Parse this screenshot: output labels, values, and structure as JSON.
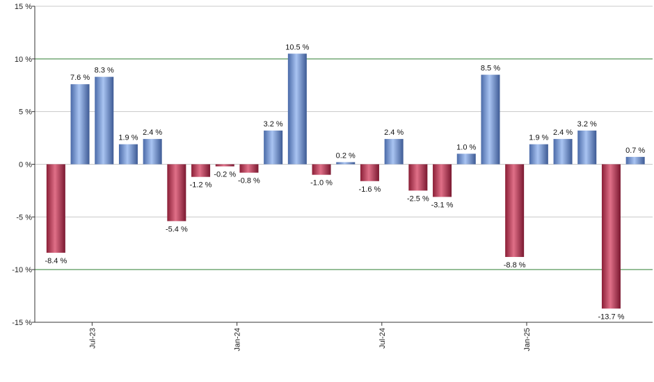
{
  "chart_data": {
    "type": "bar",
    "title": "",
    "xlabel": "",
    "ylabel": "",
    "ylim": [
      -15,
      15
    ],
    "y_ticks": [
      -15,
      -10,
      -5,
      0,
      5,
      10,
      15
    ],
    "y_tick_labels": [
      "-15 %",
      "-10 %",
      "-5 %",
      "0 %",
      "5 %",
      "10 %",
      "15 %"
    ],
    "highlight_lines": [
      10,
      -10
    ],
    "grid": true,
    "x_tick_labels": [
      {
        "label": "Jul-23",
        "index": 1.5
      },
      {
        "label": "Jan-24",
        "index": 7.5
      },
      {
        "label": "Jul-24",
        "index": 13.5
      },
      {
        "label": "Jan-25",
        "index": 19.5
      }
    ],
    "values": [
      -8.4,
      7.6,
      8.3,
      1.9,
      2.4,
      -5.4,
      -1.2,
      -0.2,
      -0.8,
      3.2,
      10.5,
      -1.0,
      0.2,
      -1.6,
      2.4,
      -2.5,
      -3.1,
      1.0,
      8.5,
      -8.8,
      1.9,
      2.4,
      3.2,
      -13.7,
      0.7
    ],
    "data_labels": [
      "-8.4 %",
      "7.6 %",
      "8.3 %",
      "1.9 %",
      "2.4 %",
      "-5.4 %",
      "-1.2 %",
      "-0.2 %",
      "-0.8 %",
      "3.2 %",
      "10.5 %",
      "-1.0 %",
      "0.2 %",
      "-1.6 %",
      "2.4 %",
      "-2.5 %",
      "-3.1 %",
      "1.0 %",
      "8.5 %",
      "-8.8 %",
      "1.9 %",
      "2.4 %",
      "3.2 %",
      "-13.7 %",
      "0.7 %"
    ],
    "colors": {
      "positive": "#7b9fe0",
      "positive_dark": "#3f5f9e",
      "negative": "#c8435e",
      "negative_dark": "#7c1a30",
      "grid": "#c8c8c8",
      "highlight": "#2e7d32",
      "axis": "#333333"
    }
  }
}
